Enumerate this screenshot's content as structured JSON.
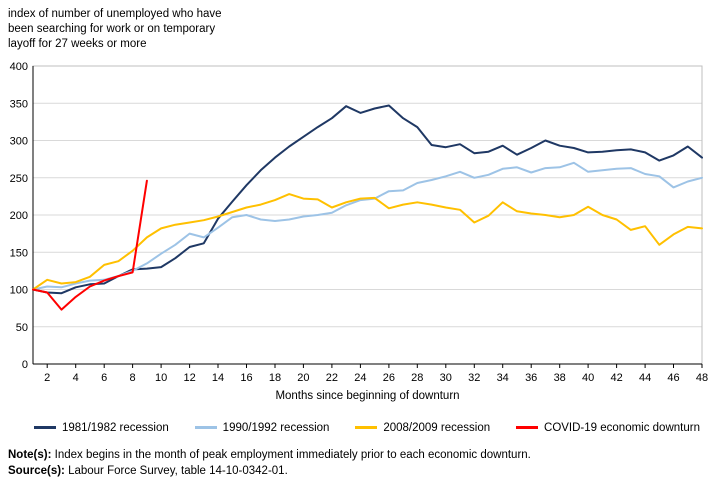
{
  "title": "index of number of unemployed who have\nbeen searching for work or on temporary\nlayoff for 27 weeks or more",
  "notes": {
    "note_label": "Note(s):",
    "note_text": " Index begins in the month of peak employment immediately prior to each economic downturn.",
    "source_label": "Source(s):",
    "source_text": " Labour Force Survey, table 14-10-0342-01."
  },
  "chart_data": {
    "type": "line",
    "title": "index of number of unemployed who have been searching for work or on temporary layoff for 27 weeks or more",
    "xlabel": "Months since beginning of downturn",
    "ylabel": "",
    "xlim": [
      1,
      48
    ],
    "ylim": [
      0,
      400
    ],
    "x_ticks": [
      2,
      4,
      6,
      8,
      10,
      12,
      14,
      16,
      18,
      20,
      22,
      24,
      26,
      28,
      30,
      32,
      34,
      36,
      38,
      40,
      42,
      44,
      46,
      48
    ],
    "y_ticks": [
      0,
      50,
      100,
      150,
      200,
      250,
      300,
      350,
      400
    ],
    "grid": "horizontal",
    "legend_position": "bottom",
    "colors": {
      "recession_1981": "#1f3864",
      "recession_1990": "#9dc3e6",
      "recession_2008": "#ffc000",
      "covid_19": "#ff0000",
      "gridline": "#d9d9d9",
      "plot_border": "#bfbfbf",
      "axis": "#000000"
    },
    "series": [
      {
        "name": "1981/1982 recession",
        "color": "#1f3864",
        "x_start": 1,
        "values": [
          100,
          96,
          95,
          103,
          107,
          108,
          118,
          127,
          128,
          130,
          142,
          157,
          162,
          195,
          218,
          240,
          260,
          277,
          292,
          305,
          318,
          330,
          346,
          337,
          343,
          347,
          330,
          318,
          294,
          291,
          295,
          283,
          285,
          293,
          281,
          290,
          300,
          293,
          290,
          284,
          285,
          287,
          288,
          284,
          273,
          280,
          292,
          277
        ]
      },
      {
        "name": "1990/1992 recession",
        "color": "#9dc3e6",
        "x_start": 1,
        "values": [
          100,
          104,
          103,
          108,
          112,
          113,
          118,
          125,
          135,
          148,
          160,
          175,
          170,
          183,
          197,
          200,
          194,
          192,
          194,
          198,
          200,
          203,
          213,
          220,
          222,
          232,
          233,
          243,
          247,
          252,
          258,
          250,
          254,
          262,
          264,
          257,
          263,
          264,
          270,
          258,
          260,
          262,
          263,
          255,
          252,
          237,
          245,
          250
        ]
      },
      {
        "name": "2008/2009 recession",
        "color": "#ffc000",
        "x_start": 1,
        "values": [
          100,
          113,
          108,
          110,
          117,
          133,
          138,
          152,
          170,
          182,
          187,
          190,
          193,
          198,
          204,
          210,
          214,
          220,
          228,
          222,
          221,
          210,
          217,
          222,
          223,
          209,
          214,
          217,
          214,
          210,
          207,
          190,
          199,
          217,
          205,
          202,
          200,
          197,
          200,
          211,
          200,
          194,
          180,
          185,
          160,
          174,
          184,
          182
        ]
      },
      {
        "name": "COVID-19 economic downturn",
        "color": "#ff0000",
        "x_start": 1,
        "values": [
          100,
          96,
          73,
          90,
          104,
          112,
          118,
          123,
          246
        ]
      }
    ]
  }
}
